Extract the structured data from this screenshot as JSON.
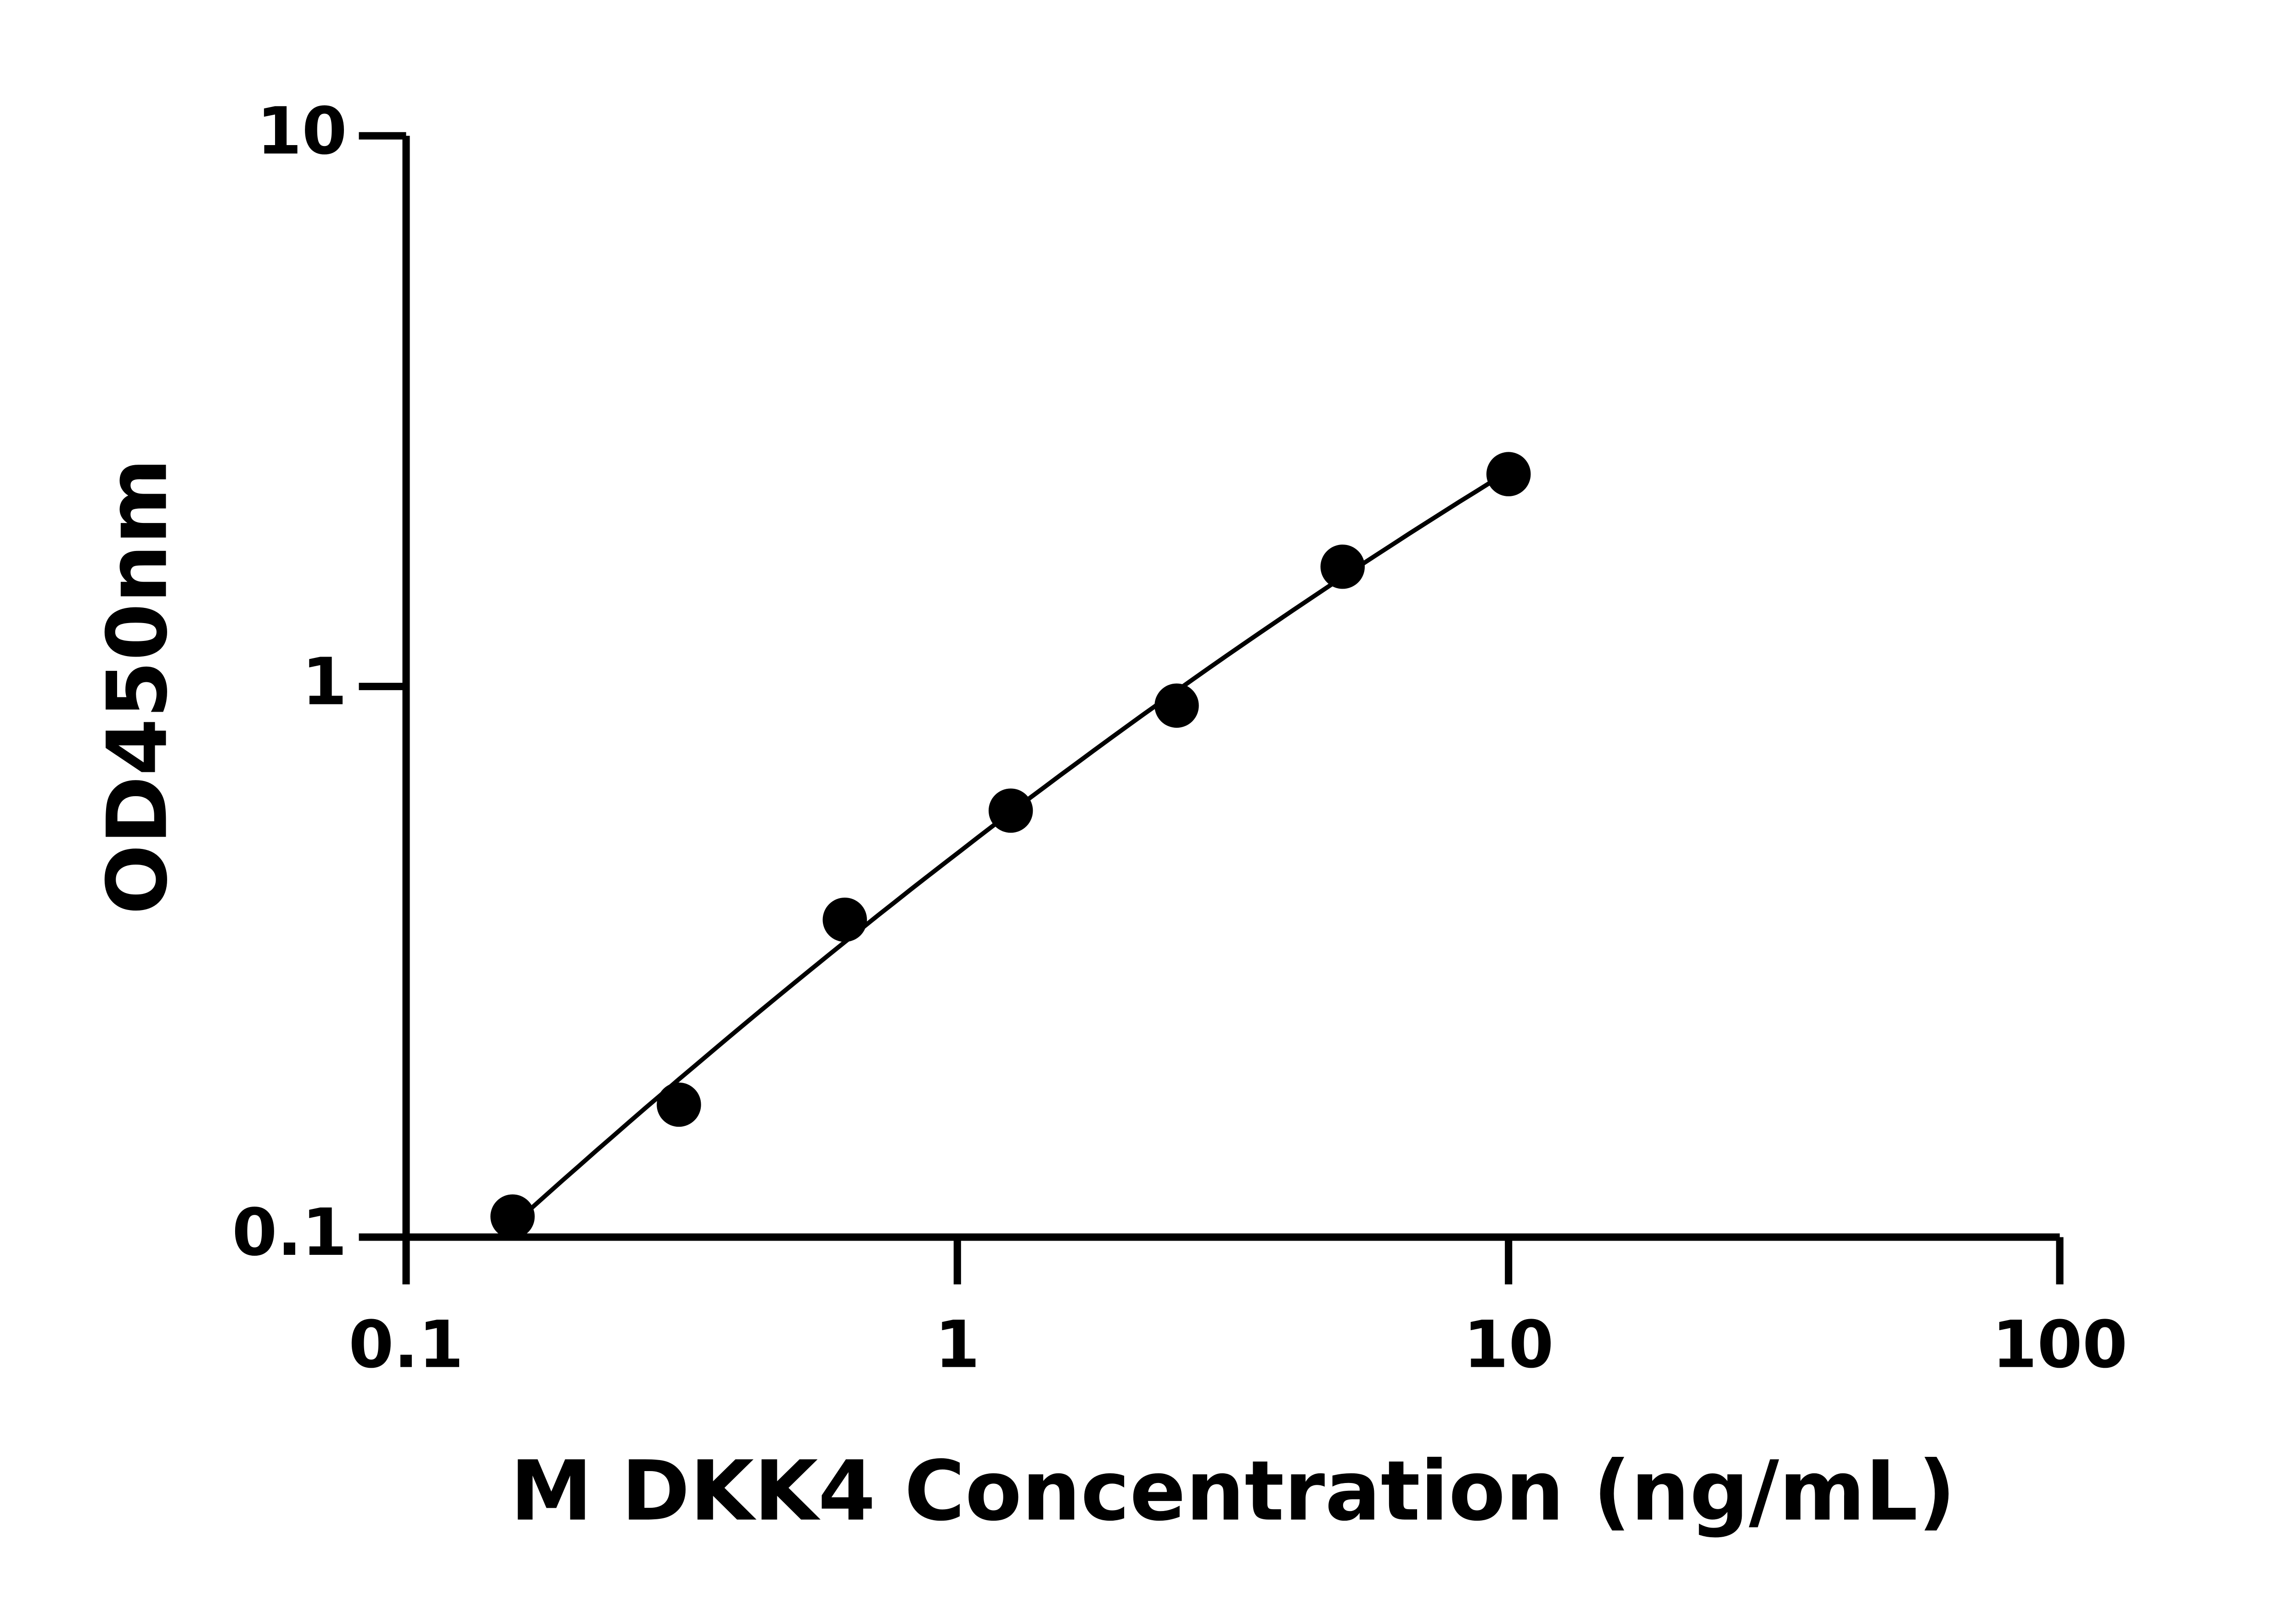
{
  "chart_data": {
    "type": "scatter",
    "xlabel": "M DKK4 Concentration (ng/mL)",
    "ylabel": "OD450nm",
    "x": [
      0.156,
      0.3125,
      0.625,
      1.25,
      2.5,
      5,
      10
    ],
    "values": [
      0.109,
      0.174,
      0.377,
      0.595,
      0.923,
      1.65,
      2.43
    ],
    "color": "#000000",
    "xscale": "log",
    "yscale": "log",
    "xlim": [
      0.1,
      100
    ],
    "ylim": [
      0.1,
      10
    ],
    "xticks": [
      0.1,
      1,
      10,
      100
    ],
    "yticks": [
      0.1,
      1,
      10
    ],
    "fit_line": true
  }
}
